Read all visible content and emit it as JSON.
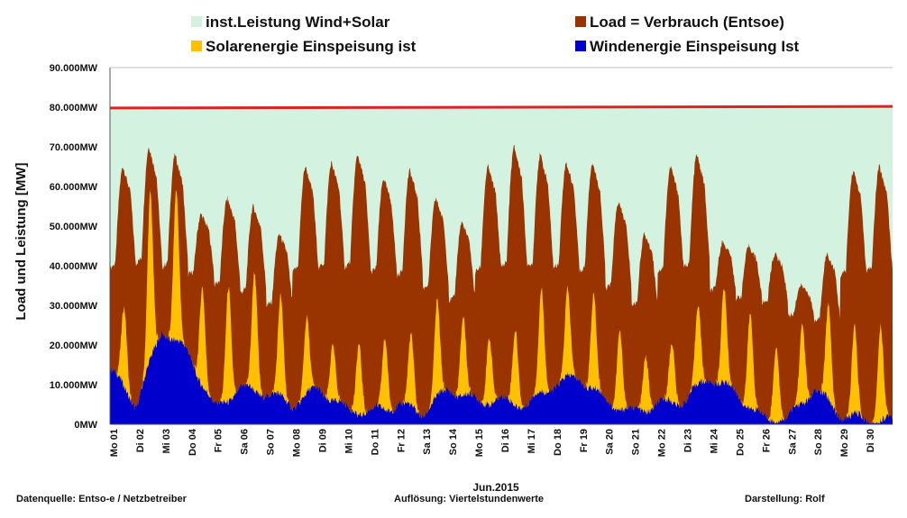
{
  "chart_data": {
    "type": "area",
    "title": "",
    "ylabel": "Load und Leistung  [MW]",
    "xlabel": "Jun.2015",
    "ylim": [
      0,
      90000
    ],
    "y_ticks": [
      "0MW",
      "10.000MW",
      "20.000MW",
      "30.000MW",
      "40.000MW",
      "50.000MW",
      "60.000MW",
      "70.000MW",
      "80.000MW",
      "90.000MW"
    ],
    "y_tick_values": [
      0,
      10000,
      20000,
      30000,
      40000,
      50000,
      60000,
      70000,
      80000,
      90000
    ],
    "grid": true,
    "categories": [
      "Mo 01",
      "Di 02",
      "Mi 03",
      "Do 04",
      "Fr 05",
      "Sa 06",
      "So 07",
      "Mo 08",
      "Di 09",
      "Mi 10",
      "Do 11",
      "Fr 12",
      "Sa 13",
      "So 14",
      "Mo 15",
      "Di 16",
      "Mi 17",
      "Do 18",
      "Fr 19",
      "Sa 20",
      "So 21",
      "Mo 22",
      "Di 23",
      "Mi 24",
      "Do 25",
      "Fr 26",
      "Sa 27",
      "So 28",
      "Mo 29",
      "Di 30"
    ],
    "legend": [
      {
        "name": "inst.Leistung Wind+Solar",
        "color": "#d4f2e0"
      },
      {
        "name": "Load =  Verbrauch (Entsoe)",
        "color": "#993300"
      },
      {
        "name": "Solarenergie Einspeisung ist",
        "color": "#ffc000"
      },
      {
        "name": "Windenergie Einspeisung Ist",
        "color": "#0000cc"
      }
    ],
    "series": [
      {
        "name": "inst.Leistung Wind+Solar",
        "color": "#d4f2e0",
        "line_color": "#dd2222",
        "start": 79800,
        "end": 80200
      },
      {
        "name": "Load =  Verbrauch (Entsoe)",
        "color": "#993300",
        "daily_peak": [
          65000,
          70000,
          68000,
          53000,
          57000,
          55000,
          48000,
          65000,
          66000,
          68000,
          62000,
          64000,
          57000,
          51000,
          65000,
          70000,
          68000,
          66000,
          66000,
          56000,
          48000,
          65000,
          68000,
          46000,
          45000,
          43000,
          35000,
          43000,
          64000,
          65000
        ],
        "daily_min": [
          38000,
          39000,
          38000,
          37000,
          34000,
          32000,
          29000,
          37000,
          38000,
          38000,
          37000,
          36000,
          33000,
          30000,
          37000,
          38000,
          38000,
          38000,
          37000,
          33000,
          29000,
          37000,
          38000,
          33000,
          31000,
          30000,
          27000,
          25000,
          36000,
          37000
        ]
      },
      {
        "name": "Solarenergie Einspeisung ist",
        "color": "#ffc000",
        "daily_peak": [
          20000,
          42000,
          38000,
          25000,
          29000,
          30000,
          25000,
          19000,
          14000,
          18000,
          18000,
          18000,
          24000,
          20000,
          17000,
          19000,
          26000,
          22000,
          24000,
          20000,
          14000,
          15000,
          20000,
          24000,
          24000,
          19000,
          20000,
          24000,
          22000,
          24000
        ]
      },
      {
        "name": "Windenergie Einspeisung Ist",
        "color": "#0000cc",
        "daily_level": [
          14000,
          5000,
          24000,
          18000,
          4000,
          9000,
          8000,
          5000,
          9000,
          4000,
          3000,
          5000,
          3000,
          9000,
          6000,
          6000,
          5000,
          10000,
          12000,
          6000,
          3000,
          5000,
          6000,
          12000,
          8000,
          1500,
          1500,
          9000,
          2500,
          1000
        ]
      }
    ]
  },
  "footer": {
    "left": "Datenquelle:  Entso-e  / Netzbetreiber",
    "center": "Auflösung:  Viertelstundenwerte",
    "right": "Darstellung: Rolf"
  }
}
